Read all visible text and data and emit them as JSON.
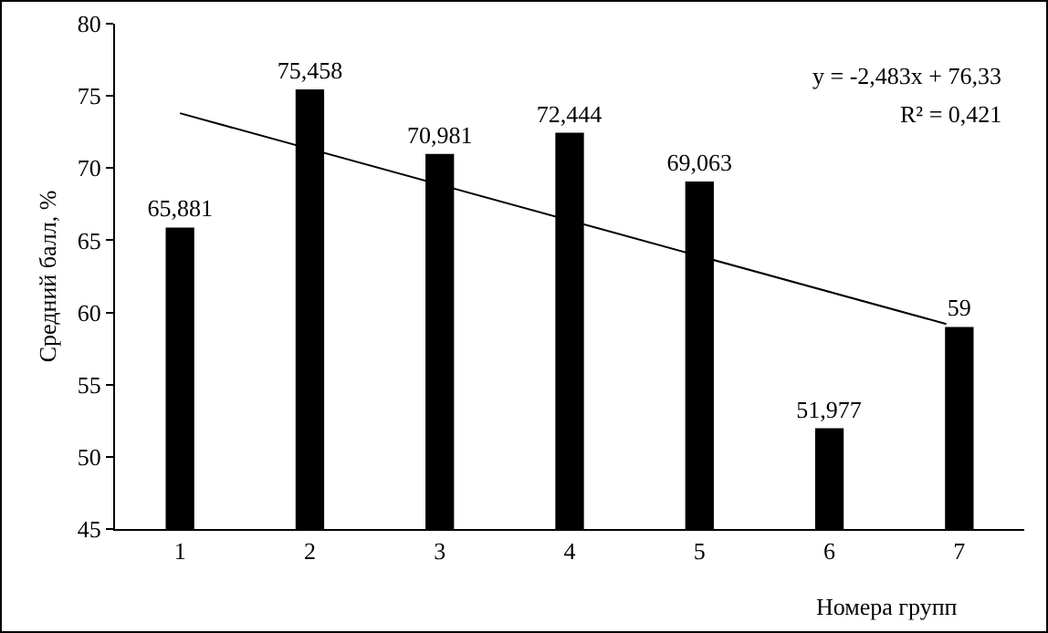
{
  "chart_data": {
    "type": "bar",
    "xlabel": "Номера групп",
    "ylabel": "Средний балл, %",
    "x": [
      1,
      2,
      3,
      4,
      5,
      6,
      7
    ],
    "xlim": [
      0.5,
      7.5
    ],
    "xticks": [
      1,
      2,
      3,
      4,
      5,
      6,
      7
    ],
    "ylim": [
      45,
      80
    ],
    "yticks": [
      45,
      50,
      55,
      60,
      65,
      70,
      75,
      80
    ],
    "grid": false,
    "legend": false,
    "series": [
      {
        "color": "#000000",
        "values": [
          65.881,
          75.458,
          70.981,
          72.444,
          69.063,
          51.977,
          59
        ],
        "value_labels": [
          "65,881",
          "75,458",
          "70,981",
          "72,444",
          "69,063",
          "51,977",
          "59"
        ]
      },
      {
        "type": "line",
        "color": "#000000",
        "x": [
          1,
          6.9
        ],
        "values": [
          73.8,
          59.2
        ],
        "marker": "none",
        "line_style": "solid"
      }
    ],
    "annotations": [
      "y = -2,483x + 76,33",
      "R² = 0,421"
    ]
  }
}
